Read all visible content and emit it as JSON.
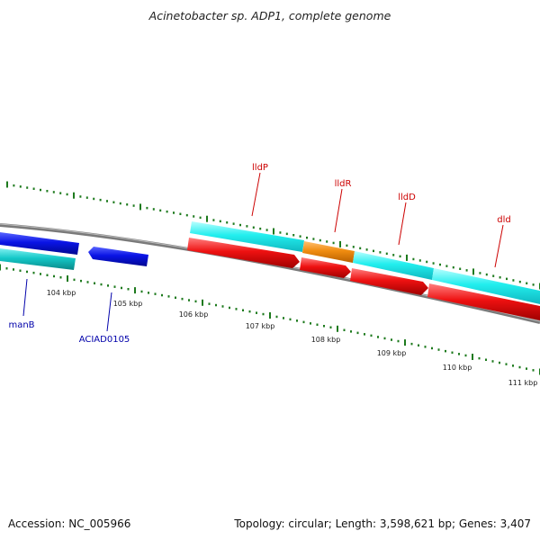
{
  "title": "Acinetobacter sp. ADP1, complete genome",
  "footer": {
    "accession": "Accession: NC_005966",
    "topology": "Topology: circular; Length: 3,598,621 bp; Genes: 3,407"
  },
  "colors": {
    "backbone": "#7a7a7a",
    "tick": "#1d7a1d",
    "label_red": "#cc0000",
    "label_blue": "#0000aa",
    "blue_feature": "#0a14e6",
    "teal_feature": "#14c8c8",
    "cyan_feature": "#22eeee",
    "orange_feature": "#f08c10",
    "red_feature": "#ee1111"
  },
  "scale_labels": [
    "104 kbp",
    "105 kbp",
    "106 kbp",
    "107 kbp",
    "108 kbp",
    "109 kbp",
    "110 kbp",
    "111 kbp"
  ],
  "gene_labels": [
    "lldP",
    "lldR",
    "lldD",
    "dld",
    "manB",
    "ACIAD0105"
  ]
}
